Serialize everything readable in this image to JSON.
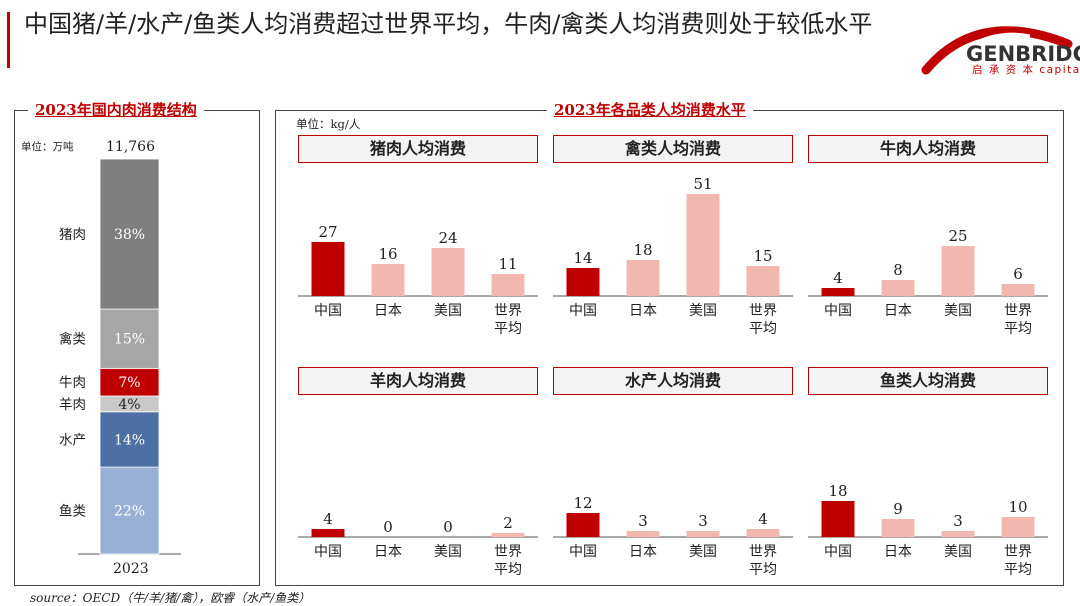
{
  "title": "中国猪/羊/水产/鱼类人均消费超过世界平均，牛肉/禽类人均消费则处于较低水平",
  "logo": {
    "name": "GENBRIDGE",
    "sub": "启 承 资 本 capital"
  },
  "colors": {
    "china": "#c00000",
    "other": "#f2b8b0",
    "accent": "#c00000"
  },
  "left_panel": {
    "title": "2023年国内肉消费结构",
    "unit": "单位：万吨",
    "total": "11,766",
    "year": "2023"
  },
  "right_panel": {
    "title": "2023年各品类人均消费水平",
    "unit": "单位：kg/人"
  },
  "chart_data": [
    {
      "type": "bar",
      "title": "2023年国内肉消费结构",
      "stacked": true,
      "categories": [
        "2023"
      ],
      "total": 11766,
      "series": [
        {
          "name": "鱼类",
          "value_pct": 22,
          "label": "22%",
          "color": "#98b0d6"
        },
        {
          "name": "水产",
          "value_pct": 14,
          "label": "14%",
          "color": "#4e6fa3"
        },
        {
          "name": "羊肉",
          "value_pct": 4,
          "label": "4%",
          "color": "#c9c9c9"
        },
        {
          "name": "牛肉",
          "value_pct": 7,
          "label": "7%",
          "color": "#c00000"
        },
        {
          "name": "禽类",
          "value_pct": 15,
          "label": "15%",
          "color": "#a6a6a6"
        },
        {
          "name": "猪肉",
          "value_pct": 38,
          "label": "38%",
          "color": "#7f7f7f"
        }
      ]
    },
    {
      "type": "bar",
      "title": "猪肉人均消费",
      "ylabel": "kg/人",
      "categories": [
        "中国",
        "日本",
        "美国",
        "世界平均"
      ],
      "values": [
        27,
        16,
        24,
        11
      ],
      "ylim": [
        0,
        55
      ]
    },
    {
      "type": "bar",
      "title": "禽类人均消费",
      "ylabel": "kg/人",
      "categories": [
        "中国",
        "日本",
        "美国",
        "世界平均"
      ],
      "values": [
        14,
        18,
        51,
        15
      ],
      "ylim": [
        0,
        55
      ]
    },
    {
      "type": "bar",
      "title": "牛肉人均消费",
      "ylabel": "kg/人",
      "categories": [
        "中国",
        "日本",
        "美国",
        "世界平均"
      ],
      "values": [
        4,
        8,
        25,
        6
      ],
      "ylim": [
        0,
        55
      ]
    },
    {
      "type": "bar",
      "title": "羊肉人均消费",
      "ylabel": "kg/人",
      "categories": [
        "中国",
        "日本",
        "美国",
        "世界平均"
      ],
      "values": [
        4,
        0,
        0,
        2
      ],
      "ylim": [
        0,
        55
      ]
    },
    {
      "type": "bar",
      "title": "水产人均消费",
      "ylabel": "kg/人",
      "categories": [
        "中国",
        "日本",
        "美国",
        "世界平均"
      ],
      "values": [
        12,
        3,
        3,
        4
      ],
      "ylim": [
        0,
        55
      ]
    },
    {
      "type": "bar",
      "title": "鱼类人均消费",
      "ylabel": "kg/人",
      "categories": [
        "中国",
        "日本",
        "美国",
        "世界平均"
      ],
      "values": [
        18,
        9,
        3,
        10
      ],
      "ylim": [
        0,
        55
      ]
    }
  ],
  "source": "source：OECD（牛/羊/猪/禽），欧睿（水产/鱼类）"
}
